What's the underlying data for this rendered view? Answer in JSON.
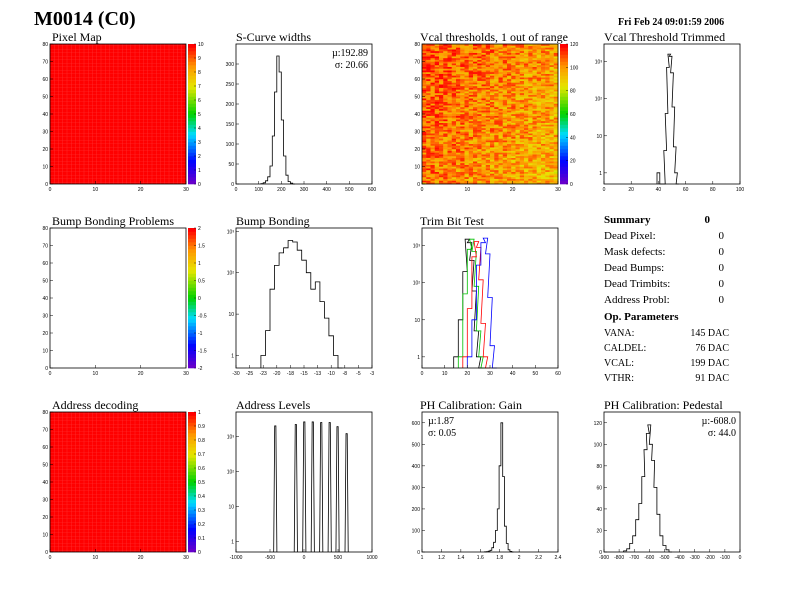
{
  "header": {
    "title": "M0014 (C0)",
    "timestamp": "Fri Feb 24 09:01:59 2006"
  },
  "summary": {
    "title": "Summary",
    "total": "0",
    "rows": [
      {
        "label": "Dead Pixel:",
        "value": "0"
      },
      {
        "label": "Mask defects:",
        "value": "0"
      },
      {
        "label": "Dead Bumps:",
        "value": "0"
      },
      {
        "label": "Dead Trimbits:",
        "value": "0"
      },
      {
        "label": "Address Probl:",
        "value": "0"
      }
    ]
  },
  "op_parameters": {
    "title": "Op. Parameters",
    "rows": [
      {
        "label": "VANA:",
        "value": "145 DAC"
      },
      {
        "label": "CALDEL:",
        "value": "76 DAC"
      },
      {
        "label": "VCAL:",
        "value": "199 DAC"
      },
      {
        "label": "VTHR:",
        "value": "91 DAC"
      }
    ]
  },
  "chart_data": [
    {
      "id": "pixel-map",
      "type": "heatmap",
      "title": "Pixel Map",
      "xlim": [
        0,
        32
      ],
      "ylim": [
        0,
        80
      ],
      "xticks": [
        "0",
        "10",
        "20",
        "30"
      ],
      "yticks": [
        "0",
        "10",
        "20",
        "30",
        "40",
        "50",
        "60",
        "70",
        "80"
      ],
      "zticks": [
        "0",
        "1",
        "2",
        "3",
        "4",
        "5",
        "6",
        "7",
        "8",
        "9",
        "10"
      ],
      "zlim": [
        0,
        10
      ],
      "fill": "uniform-max",
      "value": 10
    },
    {
      "id": "scurve-widths",
      "type": "line",
      "title": "S-Curve widths",
      "xlim": [
        0,
        600
      ],
      "ylim": [
        0,
        350
      ],
      "xticks": [
        "0",
        "100",
        "200",
        "300",
        "400",
        "500",
        "600"
      ],
      "yticks": [
        "0",
        "50",
        "100",
        "150",
        "200",
        "250",
        "300"
      ],
      "stats": [
        "µ:192.89",
        "σ: 20.66"
      ],
      "x": [
        115,
        125,
        135,
        145,
        155,
        165,
        175,
        185,
        195,
        205,
        215,
        225,
        235,
        245,
        255
      ],
      "values": [
        1,
        3,
        8,
        18,
        45,
        120,
        230,
        320,
        280,
        160,
        70,
        22,
        6,
        2,
        0
      ]
    },
    {
      "id": "vcal-thresholds",
      "type": "heatmap",
      "title": "Vcal thresholds, 1 out of range",
      "xlim": [
        0,
        32
      ],
      "ylim": [
        0,
        80
      ],
      "xticks": [
        "0",
        "10",
        "20",
        "30"
      ],
      "yticks": [
        "0",
        "10",
        "20",
        "30",
        "40",
        "50",
        "60",
        "70",
        "80"
      ],
      "zticks": [
        "0",
        "20",
        "40",
        "60",
        "80",
        "100",
        "120"
      ],
      "zlim": [
        0,
        125
      ],
      "fill": "noisy",
      "value": 100
    },
    {
      "id": "vcal-trimmed",
      "type": "line",
      "title": "Vcal Threshold Trimmed",
      "log": true,
      "xlim": [
        0,
        100
      ],
      "ylim": [
        0.5,
        3000
      ],
      "xticks": [
        "0",
        "20",
        "40",
        "60",
        "80",
        "100"
      ],
      "yticks": [
        "1",
        "10",
        "10²",
        "10³"
      ],
      "x": [
        40,
        42,
        44,
        45,
        46,
        47,
        48,
        49,
        50,
        51,
        52,
        53,
        54
      ],
      "values": [
        1,
        0,
        0,
        4,
        40,
        700,
        1600,
        1400,
        500,
        60,
        5,
        1,
        0
      ]
    },
    {
      "id": "bump-bonding-problems",
      "type": "heatmap",
      "title": "Bump Bonding Problems",
      "xlim": [
        0,
        32
      ],
      "ylim": [
        0,
        80
      ],
      "xticks": [
        "0",
        "10",
        "20",
        "30"
      ],
      "yticks": [
        "0",
        "10",
        "20",
        "30",
        "40",
        "50",
        "60",
        "70",
        "80"
      ],
      "zticks": [
        "-2",
        "-1.5",
        "-1",
        "-0.5",
        "0",
        "0.5",
        "1",
        "1.5",
        "2"
      ],
      "zlim": [
        -2,
        2
      ],
      "fill": "empty",
      "value": 0
    },
    {
      "id": "bump-bonding",
      "type": "line",
      "title": "Bump Bonding",
      "log": true,
      "xlim": [
        -30,
        0
      ],
      "ylim": [
        0.5,
        1200
      ],
      "xticks": [
        "-30",
        "-25",
        "-23",
        "-20",
        "-18",
        "-15",
        "-13",
        "-10",
        "-8",
        "-5",
        "-3"
      ],
      "yticks": [
        "1",
        "10",
        "10²",
        "10³"
      ],
      "x": [
        -24,
        -23,
        -22,
        -21,
        -20,
        -19,
        -18,
        -17,
        -16,
        -15,
        -14,
        -13,
        -12,
        -11,
        -10,
        -9,
        -8,
        -7
      ],
      "values": [
        1,
        4,
        40,
        150,
        300,
        400,
        600,
        550,
        350,
        200,
        100,
        40,
        60,
        20,
        8,
        3,
        1,
        0
      ]
    },
    {
      "id": "trim-bit-test",
      "type": "line",
      "title": "Trim Bit Test",
      "log": true,
      "xlim": [
        0,
        60
      ],
      "ylim": [
        0.5,
        3000
      ],
      "xticks": [
        "0",
        "10",
        "20",
        "30",
        "40",
        "50",
        "60"
      ],
      "yticks": [
        "1",
        "10",
        "10²",
        "10³"
      ],
      "series": [
        {
          "color": "#000000",
          "x": [
            15,
            17,
            19,
            20,
            21,
            22,
            23,
            24,
            25,
            26
          ],
          "values": [
            1,
            10,
            200,
            1500,
            1200,
            400,
            60,
            5,
            1,
            0
          ]
        },
        {
          "color": "#00c000",
          "x": [
            17,
            19,
            21,
            22,
            23,
            24,
            25,
            26,
            27
          ],
          "values": [
            1,
            50,
            800,
            1500,
            700,
            80,
            5,
            1,
            0
          ]
        },
        {
          "color": "#ff0000",
          "x": [
            19,
            21,
            23,
            24,
            25,
            26,
            27,
            28,
            29
          ],
          "values": [
            1,
            20,
            500,
            1300,
            900,
            120,
            8,
            1,
            0
          ]
        },
        {
          "color": "#0000ff",
          "x": [
            21,
            23,
            25,
            27,
            28,
            29,
            30,
            31,
            32
          ],
          "values": [
            1,
            10,
            300,
            1200,
            1600,
            600,
            40,
            2,
            0
          ]
        }
      ]
    },
    {
      "id": "address-decoding",
      "type": "heatmap",
      "title": "Address decoding",
      "xlim": [
        0,
        32
      ],
      "ylim": [
        0,
        80
      ],
      "xticks": [
        "0",
        "10",
        "20",
        "30"
      ],
      "yticks": [
        "0",
        "10",
        "20",
        "30",
        "40",
        "50",
        "60",
        "70",
        "80"
      ],
      "zticks": [
        "0",
        "0.1",
        "0.2",
        "0.3",
        "0.4",
        "0.5",
        "0.6",
        "0.7",
        "0.8",
        "0.9",
        "1"
      ],
      "zlim": [
        0,
        1
      ],
      "fill": "uniform-max",
      "value": 1
    },
    {
      "id": "address-levels",
      "type": "line",
      "title": "Address Levels",
      "log": true,
      "xlim": [
        -1250,
        1000
      ],
      "ylim": [
        0.5,
        5000
      ],
      "xticks": [
        "-1000",
        "-500",
        "0",
        "500",
        "1000"
      ],
      "yticks": [
        "1",
        "10",
        "10²",
        "10³"
      ],
      "peaks": [
        -600,
        -260,
        -120,
        20,
        160,
        300,
        430,
        580
      ],
      "peak_values": [
        2000,
        2200,
        2600,
        2600,
        2500,
        2500,
        1900,
        1200
      ]
    },
    {
      "id": "ph-gain",
      "type": "line",
      "title": "PH Calibration: Gain",
      "xlim": [
        1,
        2.5
      ],
      "ylim": [
        0,
        650
      ],
      "xticks": [
        "1",
        "1.2",
        "1.4",
        "1.6",
        "1.8",
        "2",
        "2.2",
        "2.4"
      ],
      "yticks": [
        "0",
        "100",
        "200",
        "300",
        "400",
        "500",
        "600"
      ],
      "stats": [
        "µ:1.87",
        "σ: 0.05"
      ],
      "x": [
        1.7,
        1.72,
        1.74,
        1.76,
        1.78,
        1.8,
        1.82,
        1.84,
        1.86,
        1.88,
        1.9,
        1.92,
        1.94,
        1.96,
        1.98,
        2.0
      ],
      "values": [
        1,
        2,
        4,
        8,
        20,
        45,
        100,
        200,
        400,
        600,
        350,
        120,
        40,
        10,
        3,
        0
      ]
    },
    {
      "id": "ph-pedestal",
      "type": "line",
      "title": "PH Calibration: Pedestal",
      "xlim": [
        -900,
        0
      ],
      "ylim": [
        0,
        130
      ],
      "xticks": [
        "-900",
        "-800",
        "-700",
        "-600",
        "-500",
        "-400",
        "-300",
        "-200",
        "-100",
        "0"
      ],
      "yticks": [
        "0",
        "20",
        "40",
        "60",
        "80",
        "100",
        "120"
      ],
      "stats": [
        "µ:-608.0",
        "σ: 44.0"
      ],
      "x": [
        -760,
        -740,
        -720,
        -700,
        -680,
        -660,
        -640,
        -625,
        -610,
        -600,
        -590,
        -575,
        -560,
        -540,
        -520,
        -500,
        -480,
        -460
      ],
      "values": [
        1,
        3,
        8,
        15,
        30,
        45,
        70,
        95,
        110,
        118,
        100,
        85,
        60,
        35,
        15,
        6,
        2,
        0
      ]
    }
  ]
}
